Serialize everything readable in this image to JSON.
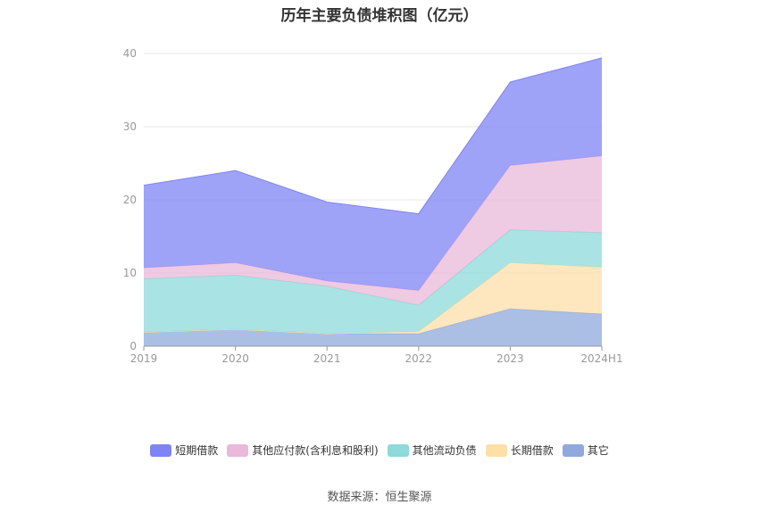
{
  "chart_data": {
    "type": "area",
    "title": "历年主要负债堆积图（亿元）",
    "stacked": true,
    "categories": [
      "2019",
      "2020",
      "2021",
      "2022",
      "2023",
      "2024H1"
    ],
    "ylim": [
      0,
      40
    ],
    "yticks": [
      0,
      10,
      20,
      30,
      40
    ],
    "grid": true,
    "legend_position": "bottom",
    "series": [
      {
        "name": "其它",
        "color": "#8fa9dc",
        "values": [
          1.9,
          2.3,
          1.7,
          1.7,
          5.1,
          4.4
        ]
      },
      {
        "name": "长期借款",
        "color": "#fddfa8",
        "values": [
          0.0,
          0.0,
          0.0,
          0.3,
          6.3,
          6.4
        ]
      },
      {
        "name": "其他流动负债",
        "color": "#8ed9d9",
        "values": [
          7.3,
          7.4,
          6.5,
          3.6,
          4.5,
          4.7
        ]
      },
      {
        "name": "其他应付款(含利息和股利)",
        "color": "#e9b8da",
        "values": [
          1.5,
          1.7,
          0.7,
          2.0,
          8.8,
          10.5
        ]
      },
      {
        "name": "短期借款",
        "color": "#7f84f5",
        "values": [
          11.3,
          12.6,
          10.8,
          10.5,
          11.4,
          13.4
        ]
      }
    ]
  },
  "legend_order": [
    "短期借款",
    "其他应付款(含利息和股利)",
    "其他流动负债",
    "长期借款",
    "其它"
  ],
  "source": "数据来源：恒生聚源"
}
